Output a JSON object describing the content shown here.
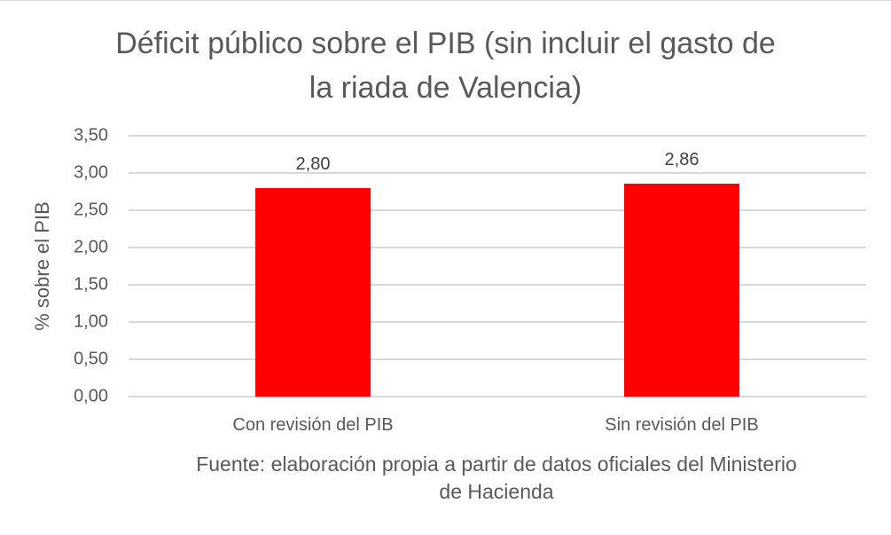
{
  "chart_data": {
    "type": "bar",
    "title": "Déficit público sobre el PIB (sin incluir el gasto de la riada de Valencia)",
    "title_lines": [
      "Déficit público sobre el PIB (sin incluir el gasto de",
      "la riada de Valencia)"
    ],
    "xlabel": "",
    "ylabel": "% sobre el PIB",
    "categories": [
      "Con revisión del PIB",
      "Sin revisión del PIB"
    ],
    "values": [
      2.8,
      2.86
    ],
    "data_labels": [
      "2,80",
      "2,86"
    ],
    "ylim": [
      0,
      3.5
    ],
    "yticks": [
      "0,00",
      "0,50",
      "1,00",
      "1,50",
      "2,00",
      "2,50",
      "3,00",
      "3,50"
    ],
    "grid": true,
    "legend": null,
    "bar_color": "#ff0000",
    "annotation": "Fuente: elaboración propia a partir de datos oficiales del Ministerio de Hacienda",
    "annotation_lines": [
      "Fuente: elaboración propia a partir de datos oficiales del Ministerio",
      "de Hacienda"
    ]
  }
}
